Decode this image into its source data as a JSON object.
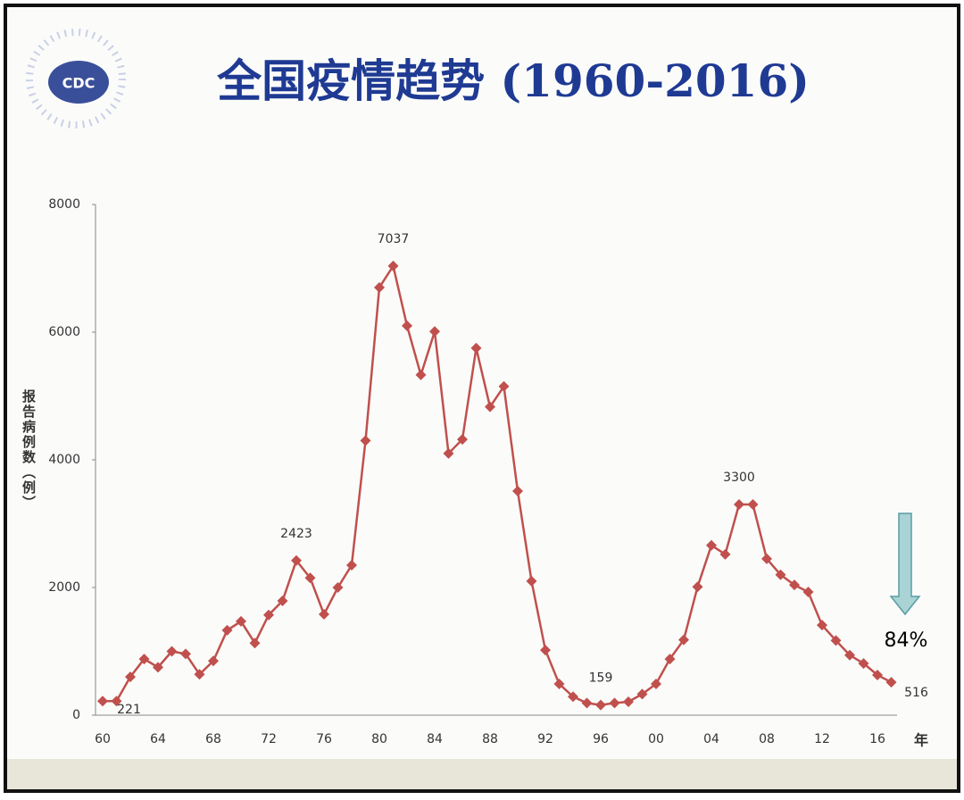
{
  "logo_text": "CDC",
  "chart_data": {
    "type": "line",
    "title": "全国疫情趋势 (1960-2016)",
    "y_label": "报告病例数（例）",
    "x_label": "年",
    "annotation": "84%",
    "categories": [
      "60",
      null,
      null,
      null,
      "64",
      null,
      null,
      null,
      "68",
      null,
      null,
      null,
      "72",
      null,
      null,
      null,
      "76",
      null,
      null,
      null,
      "80",
      null,
      null,
      null,
      "84",
      null,
      null,
      null,
      "88",
      null,
      null,
      null,
      "92",
      null,
      null,
      null,
      "96",
      null,
      null,
      null,
      "00",
      null,
      null,
      null,
      "04",
      null,
      null,
      null,
      "08",
      null,
      null,
      null,
      "12",
      null,
      null,
      null,
      "16",
      null
    ],
    "series": [
      {
        "name": null,
        "color": "#c0504d",
        "values": [
          221,
          221,
          600,
          880,
          750,
          1000,
          960,
          640,
          850,
          1330,
          1470,
          1130,
          1570,
          1790,
          2423,
          2150,
          1580,
          2000,
          2350,
          4300,
          6700,
          7037,
          6100,
          5330,
          6010,
          4100,
          4320,
          5750,
          4830,
          5150,
          3510,
          2100,
          1020,
          490,
          290,
          190,
          159,
          190,
          210,
          330,
          490,
          880,
          1180,
          2010,
          2660,
          2520,
          3300,
          3300,
          2450,
          2200,
          2040,
          1930,
          1410,
          1170,
          940,
          810,
          630,
          516
        ],
        "value_labels": [
          null,
          "221",
          null,
          null,
          null,
          null,
          null,
          null,
          null,
          null,
          null,
          null,
          null,
          null,
          "2423",
          null,
          null,
          null,
          null,
          null,
          null,
          "7037",
          null,
          null,
          null,
          null,
          null,
          null,
          null,
          null,
          null,
          null,
          null,
          null,
          null,
          null,
          "159",
          null,
          null,
          null,
          null,
          null,
          null,
          null,
          null,
          null,
          "3300",
          null,
          null,
          null,
          null,
          null,
          null,
          null,
          null,
          null,
          null,
          "516"
        ]
      }
    ],
    "ylim": [
      0,
      8000
    ],
    "yticks": [
      0,
      2000,
      4000,
      6000,
      8000
    ],
    "grid": false
  }
}
